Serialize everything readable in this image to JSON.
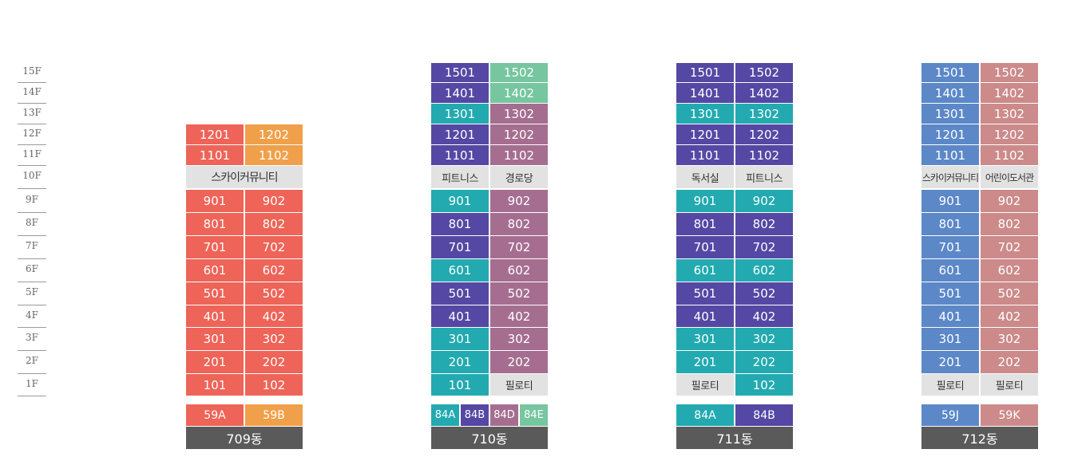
{
  "colors": {
    "red": "#ee6458",
    "orange": "#f0a04a",
    "indigo": "#5548a4",
    "mint": "#76c6a0",
    "teal": "#22aab0",
    "mauve": "#a56e90",
    "blue": "#5c88c8",
    "rose": "#cc8a8a",
    "facility_gray": "#e2e2e2",
    "name_gray": "#5a5a5a"
  },
  "floors": [
    "15F",
    "14F",
    "13F",
    "12F",
    "11F",
    "10F",
    "9F",
    "8F",
    "7F",
    "6F",
    "5F",
    "4F",
    "3F",
    "2F",
    "1F"
  ],
  "buildings": [
    {
      "name": "709동",
      "rows": [
        {
          "floor": "12F",
          "cells": [
            {
              "t": "1201",
              "c": "red"
            },
            {
              "t": "1202",
              "c": "orange"
            }
          ]
        },
        {
          "floor": "11F",
          "cells": [
            {
              "t": "1101",
              "c": "red"
            },
            {
              "t": "1102",
              "c": "orange"
            }
          ]
        },
        {
          "floor": "10F",
          "cells": [
            {
              "t": "스카이커뮤니티",
              "c": "facility_gray",
              "span": 2
            }
          ]
        },
        {
          "floor": "9F",
          "cells": [
            {
              "t": "901",
              "c": "red"
            },
            {
              "t": "902",
              "c": "red"
            }
          ]
        },
        {
          "floor": "8F",
          "cells": [
            {
              "t": "801",
              "c": "red"
            },
            {
              "t": "802",
              "c": "red"
            }
          ]
        },
        {
          "floor": "7F",
          "cells": [
            {
              "t": "701",
              "c": "red"
            },
            {
              "t": "702",
              "c": "red"
            }
          ]
        },
        {
          "floor": "6F",
          "cells": [
            {
              "t": "601",
              "c": "red"
            },
            {
              "t": "602",
              "c": "red"
            }
          ]
        },
        {
          "floor": "5F",
          "cells": [
            {
              "t": "501",
              "c": "red"
            },
            {
              "t": "502",
              "c": "red"
            }
          ]
        },
        {
          "floor": "4F",
          "cells": [
            {
              "t": "401",
              "c": "red"
            },
            {
              "t": "402",
              "c": "red"
            }
          ]
        },
        {
          "floor": "3F",
          "cells": [
            {
              "t": "301",
              "c": "red"
            },
            {
              "t": "302",
              "c": "red"
            }
          ]
        },
        {
          "floor": "2F",
          "cells": [
            {
              "t": "201",
              "c": "red"
            },
            {
              "t": "202",
              "c": "red"
            }
          ]
        },
        {
          "floor": "1F",
          "cells": [
            {
              "t": "101",
              "c": "red"
            },
            {
              "t": "102",
              "c": "red"
            }
          ]
        }
      ],
      "types": [
        {
          "t": "59A",
          "c": "red"
        },
        {
          "t": "59B",
          "c": "orange"
        }
      ]
    },
    {
      "name": "710동",
      "rows": [
        {
          "floor": "15F",
          "cells": [
            {
              "t": "1501",
              "c": "indigo"
            },
            {
              "t": "1502",
              "c": "mint"
            }
          ]
        },
        {
          "floor": "14F",
          "cells": [
            {
              "t": "1401",
              "c": "indigo"
            },
            {
              "t": "1402",
              "c": "mint"
            }
          ]
        },
        {
          "floor": "13F",
          "cells": [
            {
              "t": "1301",
              "c": "teal"
            },
            {
              "t": "1302",
              "c": "mauve"
            }
          ]
        },
        {
          "floor": "12F",
          "cells": [
            {
              "t": "1201",
              "c": "indigo"
            },
            {
              "t": "1202",
              "c": "mauve"
            }
          ]
        },
        {
          "floor": "11F",
          "cells": [
            {
              "t": "1101",
              "c": "indigo"
            },
            {
              "t": "1102",
              "c": "mauve"
            }
          ]
        },
        {
          "floor": "10F",
          "cells": [
            {
              "t": "피트니스",
              "c": "facility_gray"
            },
            {
              "t": "경로당",
              "c": "facility_gray"
            }
          ]
        },
        {
          "floor": "9F",
          "cells": [
            {
              "t": "901",
              "c": "teal"
            },
            {
              "t": "902",
              "c": "mauve"
            }
          ]
        },
        {
          "floor": "8F",
          "cells": [
            {
              "t": "801",
              "c": "indigo"
            },
            {
              "t": "802",
              "c": "mauve"
            }
          ]
        },
        {
          "floor": "7F",
          "cells": [
            {
              "t": "701",
              "c": "indigo"
            },
            {
              "t": "702",
              "c": "mauve"
            }
          ]
        },
        {
          "floor": "6F",
          "cells": [
            {
              "t": "601",
              "c": "teal"
            },
            {
              "t": "602",
              "c": "mauve"
            }
          ]
        },
        {
          "floor": "5F",
          "cells": [
            {
              "t": "501",
              "c": "indigo"
            },
            {
              "t": "502",
              "c": "mauve"
            }
          ]
        },
        {
          "floor": "4F",
          "cells": [
            {
              "t": "401",
              "c": "indigo"
            },
            {
              "t": "402",
              "c": "mauve"
            }
          ]
        },
        {
          "floor": "3F",
          "cells": [
            {
              "t": "301",
              "c": "teal"
            },
            {
              "t": "302",
              "c": "mauve"
            }
          ]
        },
        {
          "floor": "2F",
          "cells": [
            {
              "t": "201",
              "c": "teal"
            },
            {
              "t": "202",
              "c": "mauve"
            }
          ]
        },
        {
          "floor": "1F",
          "cells": [
            {
              "t": "101",
              "c": "teal"
            },
            {
              "t": "필로티",
              "c": "facility_gray"
            }
          ]
        }
      ],
      "types": [
        {
          "t": "84A",
          "c": "teal"
        },
        {
          "t": "84B",
          "c": "indigo"
        },
        {
          "t": "84D",
          "c": "mauve"
        },
        {
          "t": "84E",
          "c": "mint"
        }
      ]
    },
    {
      "name": "711동",
      "rows": [
        {
          "floor": "15F",
          "cells": [
            {
              "t": "1501",
              "c": "indigo"
            },
            {
              "t": "1502",
              "c": "indigo"
            }
          ]
        },
        {
          "floor": "14F",
          "cells": [
            {
              "t": "1401",
              "c": "indigo"
            },
            {
              "t": "1402",
              "c": "indigo"
            }
          ]
        },
        {
          "floor": "13F",
          "cells": [
            {
              "t": "1301",
              "c": "teal"
            },
            {
              "t": "1302",
              "c": "teal"
            }
          ]
        },
        {
          "floor": "12F",
          "cells": [
            {
              "t": "1201",
              "c": "indigo"
            },
            {
              "t": "1202",
              "c": "indigo"
            }
          ]
        },
        {
          "floor": "11F",
          "cells": [
            {
              "t": "1101",
              "c": "indigo"
            },
            {
              "t": "1102",
              "c": "indigo"
            }
          ]
        },
        {
          "floor": "10F",
          "cells": [
            {
              "t": "독서실",
              "c": "facility_gray"
            },
            {
              "t": "피트니스",
              "c": "facility_gray"
            }
          ]
        },
        {
          "floor": "9F",
          "cells": [
            {
              "t": "901",
              "c": "teal"
            },
            {
              "t": "902",
              "c": "teal"
            }
          ]
        },
        {
          "floor": "8F",
          "cells": [
            {
              "t": "801",
              "c": "indigo"
            },
            {
              "t": "802",
              "c": "indigo"
            }
          ]
        },
        {
          "floor": "7F",
          "cells": [
            {
              "t": "701",
              "c": "indigo"
            },
            {
              "t": "702",
              "c": "indigo"
            }
          ]
        },
        {
          "floor": "6F",
          "cells": [
            {
              "t": "601",
              "c": "teal"
            },
            {
              "t": "602",
              "c": "teal"
            }
          ]
        },
        {
          "floor": "5F",
          "cells": [
            {
              "t": "501",
              "c": "indigo"
            },
            {
              "t": "502",
              "c": "indigo"
            }
          ]
        },
        {
          "floor": "4F",
          "cells": [
            {
              "t": "401",
              "c": "indigo"
            },
            {
              "t": "402",
              "c": "indigo"
            }
          ]
        },
        {
          "floor": "3F",
          "cells": [
            {
              "t": "301",
              "c": "teal"
            },
            {
              "t": "302",
              "c": "teal"
            }
          ]
        },
        {
          "floor": "2F",
          "cells": [
            {
              "t": "201",
              "c": "teal"
            },
            {
              "t": "202",
              "c": "teal"
            }
          ]
        },
        {
          "floor": "1F",
          "cells": [
            {
              "t": "필로티",
              "c": "facility_gray"
            },
            {
              "t": "102",
              "c": "teal"
            }
          ]
        }
      ],
      "types": [
        {
          "t": "84A",
          "c": "teal"
        },
        {
          "t": "84B",
          "c": "indigo"
        }
      ]
    },
    {
      "name": "712동",
      "rows": [
        {
          "floor": "15F",
          "cells": [
            {
              "t": "1501",
              "c": "blue"
            },
            {
              "t": "1502",
              "c": "rose"
            }
          ]
        },
        {
          "floor": "14F",
          "cells": [
            {
              "t": "1401",
              "c": "blue"
            },
            {
              "t": "1402",
              "c": "rose"
            }
          ]
        },
        {
          "floor": "13F",
          "cells": [
            {
              "t": "1301",
              "c": "blue"
            },
            {
              "t": "1302",
              "c": "rose"
            }
          ]
        },
        {
          "floor": "12F",
          "cells": [
            {
              "t": "1201",
              "c": "blue"
            },
            {
              "t": "1202",
              "c": "rose"
            }
          ]
        },
        {
          "floor": "11F",
          "cells": [
            {
              "t": "1101",
              "c": "blue"
            },
            {
              "t": "1102",
              "c": "rose"
            }
          ]
        },
        {
          "floor": "10F",
          "cells": [
            {
              "t": "스카이커뮤니티",
              "c": "facility_gray"
            },
            {
              "t": "어린이도서관",
              "c": "facility_gray"
            }
          ]
        },
        {
          "floor": "9F",
          "cells": [
            {
              "t": "901",
              "c": "blue"
            },
            {
              "t": "902",
              "c": "rose"
            }
          ]
        },
        {
          "floor": "8F",
          "cells": [
            {
              "t": "801",
              "c": "blue"
            },
            {
              "t": "802",
              "c": "rose"
            }
          ]
        },
        {
          "floor": "7F",
          "cells": [
            {
              "t": "701",
              "c": "blue"
            },
            {
              "t": "702",
              "c": "rose"
            }
          ]
        },
        {
          "floor": "6F",
          "cells": [
            {
              "t": "601",
              "c": "blue"
            },
            {
              "t": "602",
              "c": "rose"
            }
          ]
        },
        {
          "floor": "5F",
          "cells": [
            {
              "t": "501",
              "c": "blue"
            },
            {
              "t": "502",
              "c": "rose"
            }
          ]
        },
        {
          "floor": "4F",
          "cells": [
            {
              "t": "401",
              "c": "blue"
            },
            {
              "t": "402",
              "c": "rose"
            }
          ]
        },
        {
          "floor": "3F",
          "cells": [
            {
              "t": "301",
              "c": "blue"
            },
            {
              "t": "302",
              "c": "rose"
            }
          ]
        },
        {
          "floor": "2F",
          "cells": [
            {
              "t": "201",
              "c": "blue"
            },
            {
              "t": "202",
              "c": "rose"
            }
          ]
        },
        {
          "floor": "1F",
          "cells": [
            {
              "t": "필로티",
              "c": "facility_gray"
            },
            {
              "t": "필로티",
              "c": "facility_gray"
            }
          ]
        }
      ],
      "types": [
        {
          "t": "59J",
          "c": "blue"
        },
        {
          "t": "59K",
          "c": "rose"
        }
      ]
    }
  ]
}
